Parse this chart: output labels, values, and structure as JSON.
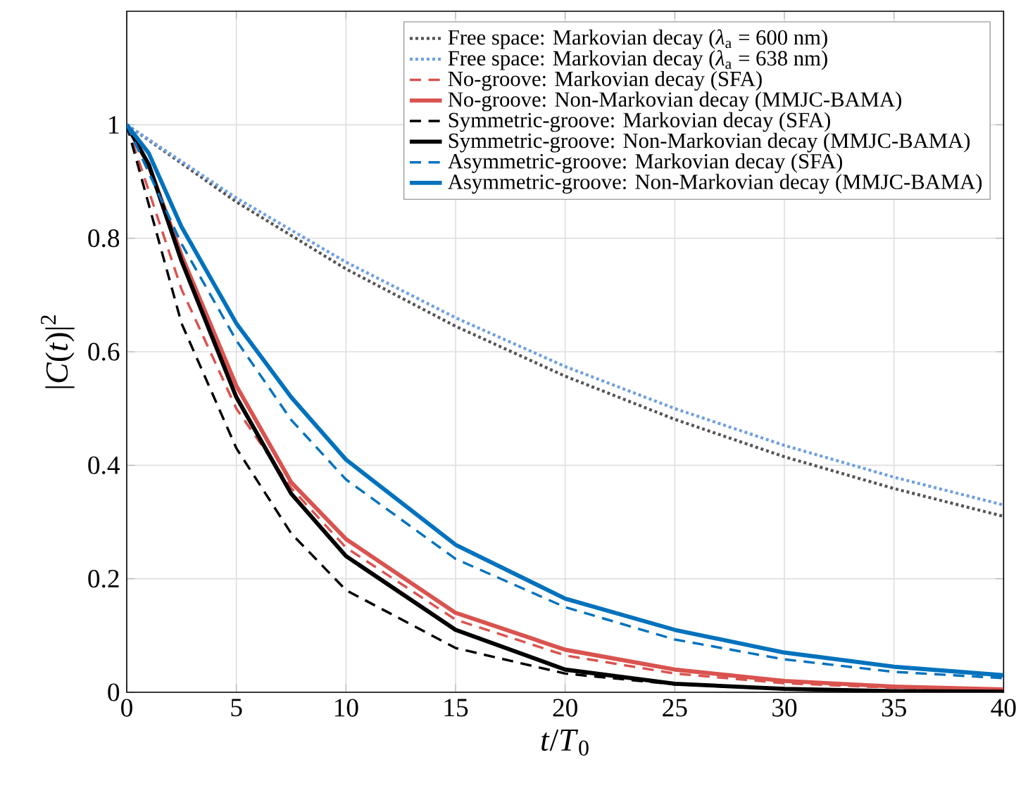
{
  "chart_data": {
    "type": "line",
    "xlabel": "*t*/*T*$_{0}$",
    "ylabel": "|*C*(*t*)|$^{2}$",
    "xlim": [
      0,
      40
    ],
    "ylim": [
      0,
      1.2
    ],
    "xticks": [
      0,
      5,
      10,
      15,
      20,
      25,
      30,
      35,
      40
    ],
    "yticks": [
      0,
      0.2,
      0.4,
      0.6,
      0.8,
      1
    ],
    "grid": true,
    "legend": "top right",
    "series": [
      {
        "name": "Free space: Markovian decay (*λ*$_{a}$ = 600 nm)",
        "color": "#555555",
        "line_style": "dotted",
        "x": [
          0,
          5,
          10,
          15,
          20,
          25,
          30,
          35,
          40
        ],
        "values": [
          1,
          0.864,
          0.746,
          0.645,
          0.557,
          0.481,
          0.415,
          0.359,
          0.31
        ]
      },
      {
        "name": "Free space: Markovian decay (*λ*$_{a}$ = 638 nm)",
        "color": "#6e9fe0",
        "line_style": "dotted",
        "x": [
          0,
          5,
          10,
          15,
          20,
          25,
          30,
          35,
          40
        ],
        "values": [
          1,
          0.871,
          0.758,
          0.66,
          0.574,
          0.5,
          0.435,
          0.379,
          0.33
        ]
      },
      {
        "name": "No-groove: Markovian decay (SFA)",
        "color": "#d9534f",
        "line_style": "dashed",
        "x": [
          0,
          2.5,
          5,
          7.5,
          10,
          15,
          20,
          25,
          30,
          35,
          40
        ],
        "values": [
          1,
          0.71,
          0.5,
          0.36,
          0.255,
          0.128,
          0.065,
          0.033,
          0.016,
          0.008,
          0.004
        ]
      },
      {
        "name": "No-groove: Non-Markovian decay (MMJC-BAMA)",
        "color": "#d9534f",
        "line_style": "solid",
        "x": [
          0,
          1,
          2.5,
          5,
          7.5,
          10,
          15,
          20,
          25,
          30,
          35,
          40
        ],
        "values": [
          1,
          0.93,
          0.77,
          0.54,
          0.37,
          0.27,
          0.14,
          0.075,
          0.04,
          0.02,
          0.01,
          0.005
        ]
      },
      {
        "name": "Symmetric-groove: Markovian decay (SFA)",
        "color": "#000000",
        "line_style": "dashed",
        "x": [
          0,
          2.5,
          5,
          7.5,
          10,
          15,
          20,
          25,
          30,
          35,
          40
        ],
        "values": [
          1,
          0.65,
          0.43,
          0.28,
          0.18,
          0.078,
          0.033,
          0.014,
          0.006,
          0.003,
          0.001
        ]
      },
      {
        "name": "Symmetric-groove: Non-Markovian decay (MMJC-BAMA)",
        "color": "#000000",
        "line_style": "solid",
        "x": [
          0,
          1,
          2.5,
          5,
          7.5,
          10,
          15,
          20,
          25,
          30,
          35,
          40
        ],
        "values": [
          1,
          0.93,
          0.76,
          0.52,
          0.35,
          0.24,
          0.11,
          0.04,
          0.015,
          0.006,
          0.002,
          0.001
        ]
      },
      {
        "name": "Asymmetric-groove: Markovian decay (SFA)",
        "color": "#0072bd",
        "line_style": "dashed",
        "x": [
          0,
          2.5,
          5,
          7.5,
          10,
          15,
          20,
          25,
          30,
          35,
          40
        ],
        "values": [
          1,
          0.79,
          0.62,
          0.48,
          0.375,
          0.235,
          0.15,
          0.093,
          0.058,
          0.036,
          0.025
        ]
      },
      {
        "name": "Asymmetric-groove: Non-Markovian decay (MMJC-BAMA)",
        "color": "#0072bd",
        "line_style": "solid",
        "x": [
          0,
          1,
          2.5,
          5,
          7.5,
          10,
          15,
          20,
          25,
          30,
          35,
          40
        ],
        "values": [
          1,
          0.95,
          0.82,
          0.65,
          0.52,
          0.41,
          0.26,
          0.165,
          0.11,
          0.07,
          0.045,
          0.03
        ]
      }
    ]
  }
}
